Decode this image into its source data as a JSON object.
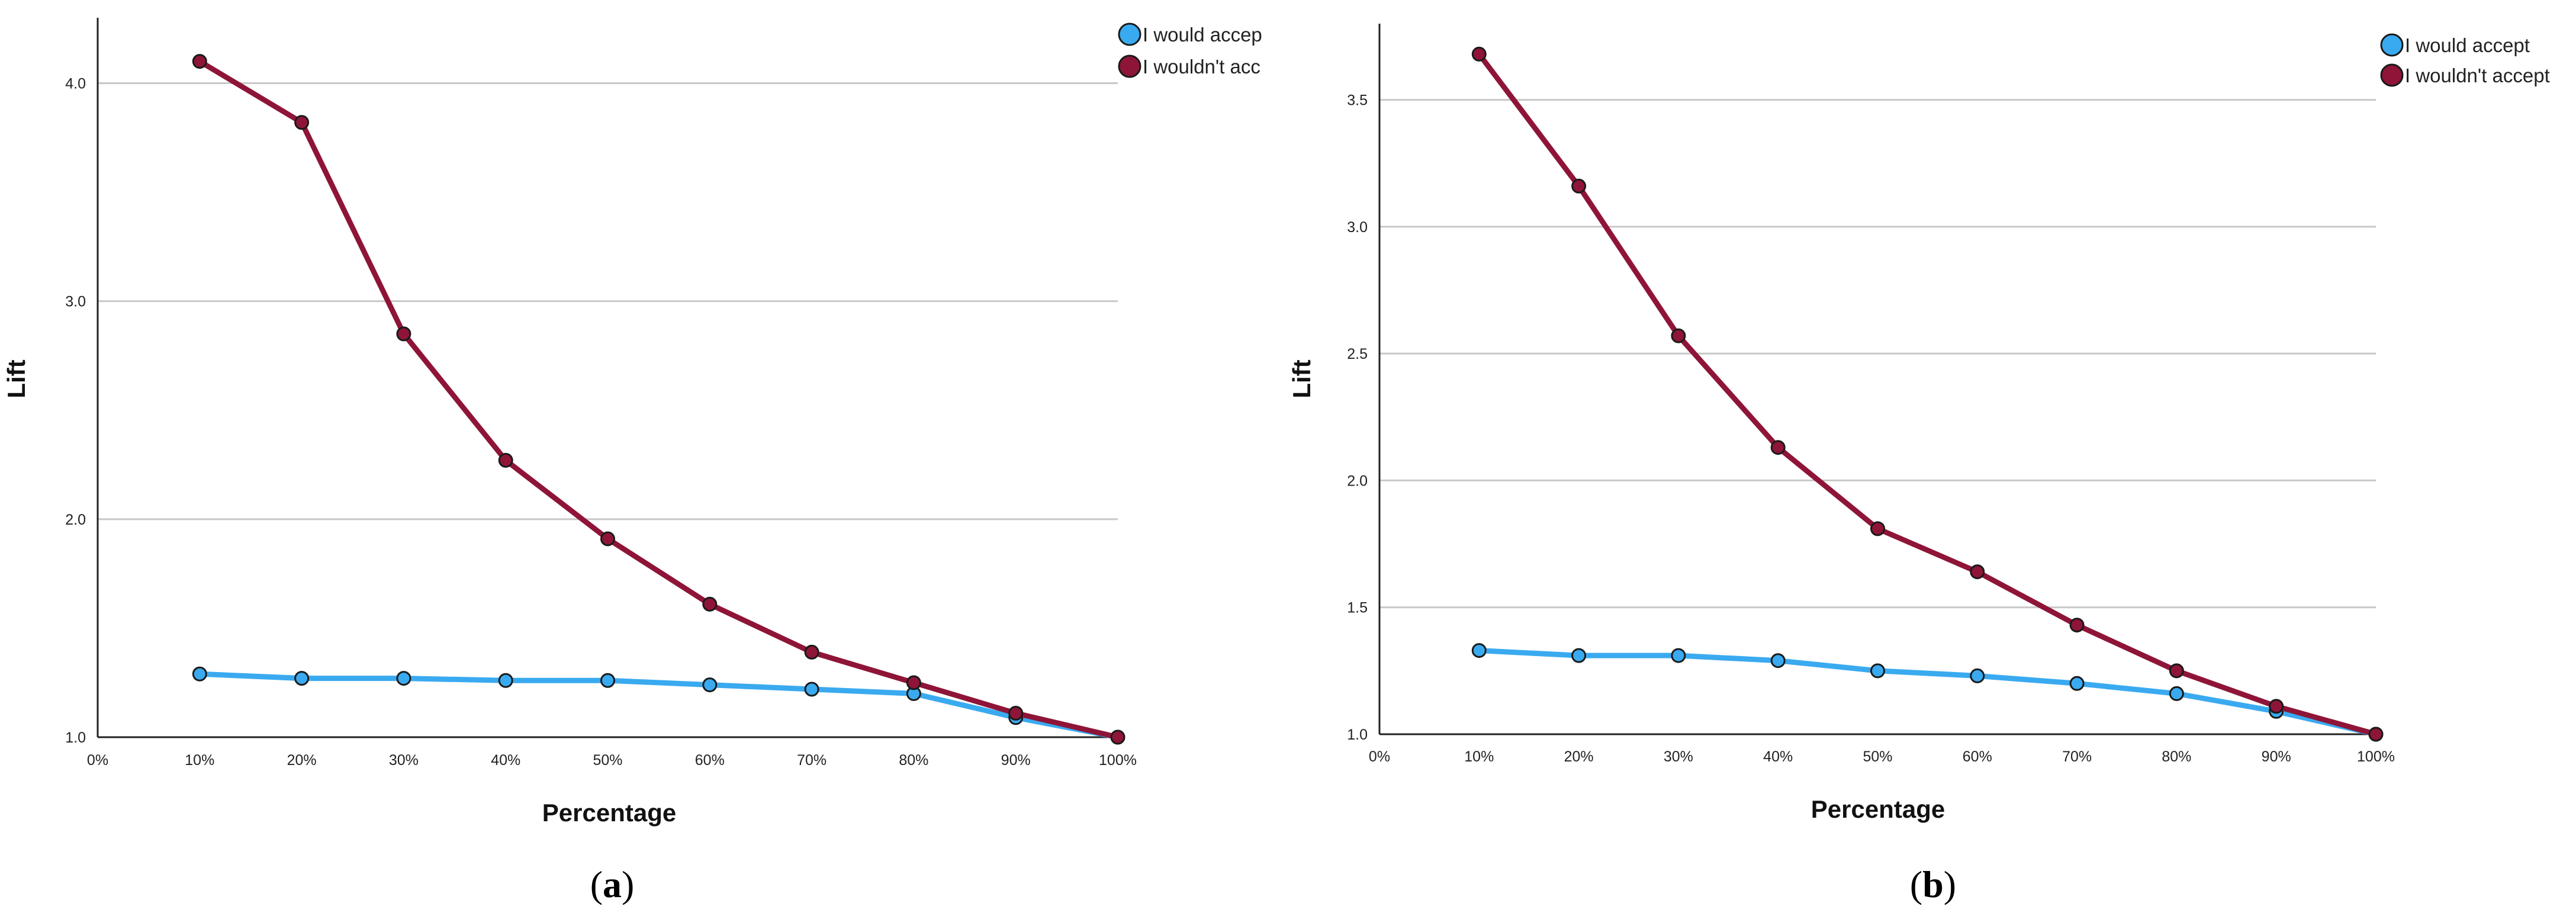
{
  "chart_data": [
    {
      "type": "line",
      "panel_label": "a",
      "title": "",
      "xlabel": "Percentage",
      "ylabel": "Lift",
      "categories": [
        "0%",
        "10%",
        "20%",
        "30%",
        "40%",
        "50%",
        "60%",
        "70%",
        "80%",
        "90%",
        "100%"
      ],
      "yticks": [
        "1.0",
        "2.0",
        "3.0",
        "4.0"
      ],
      "ytick_values": [
        1.0,
        2.0,
        3.0,
        4.0
      ],
      "ylim": [
        1.0,
        4.3
      ],
      "grid": true,
      "legend_position": "top-right",
      "series": [
        {
          "name": "I would accept",
          "legend_label": "I would accep",
          "color": "#3aaaf0",
          "x": [
            10,
            20,
            30,
            40,
            50,
            60,
            70,
            80,
            90,
            100
          ],
          "values": [
            1.29,
            1.27,
            1.27,
            1.26,
            1.26,
            1.24,
            1.22,
            1.2,
            1.09,
            1.0
          ]
        },
        {
          "name": "I wouldn't accept",
          "legend_label": "I wouldn't acc",
          "color": "#8e1538",
          "x": [
            10,
            20,
            30,
            40,
            50,
            60,
            70,
            80,
            90,
            100
          ],
          "values": [
            4.1,
            3.82,
            2.85,
            2.27,
            1.91,
            1.61,
            1.39,
            1.25,
            1.11,
            1.0
          ]
        }
      ]
    },
    {
      "type": "line",
      "panel_label": "b",
      "title": "",
      "xlabel": "Percentage",
      "ylabel": "Lift",
      "categories": [
        "0%",
        "10%",
        "20%",
        "30%",
        "40%",
        "50%",
        "60%",
        "70%",
        "80%",
        "90%",
        "100%"
      ],
      "yticks": [
        "1.0",
        "1.5",
        "2.0",
        "2.5",
        "3.0",
        "3.5"
      ],
      "ytick_values": [
        1.0,
        1.5,
        2.0,
        2.5,
        3.0,
        3.5
      ],
      "ylim": [
        1.0,
        3.8
      ],
      "grid": true,
      "legend_position": "top-right",
      "series": [
        {
          "name": "I would accept",
          "legend_label": "I would accept",
          "color": "#3aaaf0",
          "x": [
            10,
            20,
            30,
            40,
            50,
            60,
            70,
            80,
            90,
            100
          ],
          "values": [
            1.33,
            1.31,
            1.31,
            1.29,
            1.25,
            1.23,
            1.2,
            1.16,
            1.09,
            1.0
          ]
        },
        {
          "name": "I wouldn't accept",
          "legend_label": "I wouldn't accept",
          "color": "#8e1538",
          "x": [
            10,
            20,
            30,
            40,
            50,
            60,
            70,
            80,
            90,
            100
          ],
          "values": [
            3.68,
            3.16,
            2.57,
            2.13,
            1.81,
            1.64,
            1.43,
            1.25,
            1.11,
            1.0
          ]
        }
      ]
    }
  ],
  "captions": [
    {
      "open": "(",
      "letter": "a",
      "close": ")"
    },
    {
      "open": "(",
      "letter": "b",
      "close": ")"
    }
  ]
}
